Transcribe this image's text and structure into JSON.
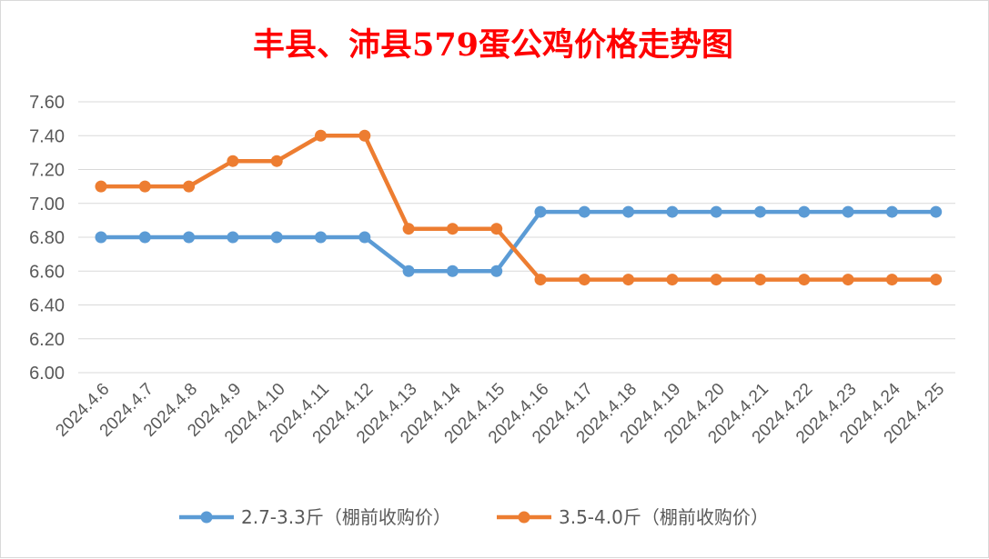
{
  "chart_data": {
    "type": "line",
    "title": "丰县、沛县579蛋公鸡价格走势图",
    "title_color": "#ff0000",
    "categories": [
      "2024.4.6",
      "2024.4.7",
      "2024.4.8",
      "2024.4.9",
      "2024.4.10",
      "2024.4.11",
      "2024.4.12",
      "2024.4.13",
      "2024.4.14",
      "2024.4.15",
      "2024.4.16",
      "2024.4.17",
      "2024.4.18",
      "2024.4.19",
      "2024.4.20",
      "2024.4.21",
      "2024.4.22",
      "2024.4.23",
      "2024.4.24",
      "2024.4.25"
    ],
    "series": [
      {
        "name": "2.7-3.3斤（棚前收购价）",
        "color": "#5b9bd5",
        "values": [
          6.8,
          6.8,
          6.8,
          6.8,
          6.8,
          6.8,
          6.8,
          6.6,
          6.6,
          6.6,
          6.95,
          6.95,
          6.95,
          6.95,
          6.95,
          6.95,
          6.95,
          6.95,
          6.95,
          6.95
        ]
      },
      {
        "name": "3.5-4.0斤（棚前收购价）",
        "color": "#ed7d31",
        "values": [
          7.1,
          7.1,
          7.1,
          7.25,
          7.25,
          7.4,
          7.4,
          6.85,
          6.85,
          6.85,
          6.55,
          6.55,
          6.55,
          6.55,
          6.55,
          6.55,
          6.55,
          6.55,
          6.55,
          6.55
        ]
      }
    ],
    "ylim": [
      6.0,
      7.6
    ],
    "yticks": [
      "6.00",
      "6.20",
      "6.40",
      "6.60",
      "6.80",
      "7.00",
      "7.20",
      "7.40",
      "7.60"
    ],
    "grid": true,
    "legend_position": "bottom"
  }
}
